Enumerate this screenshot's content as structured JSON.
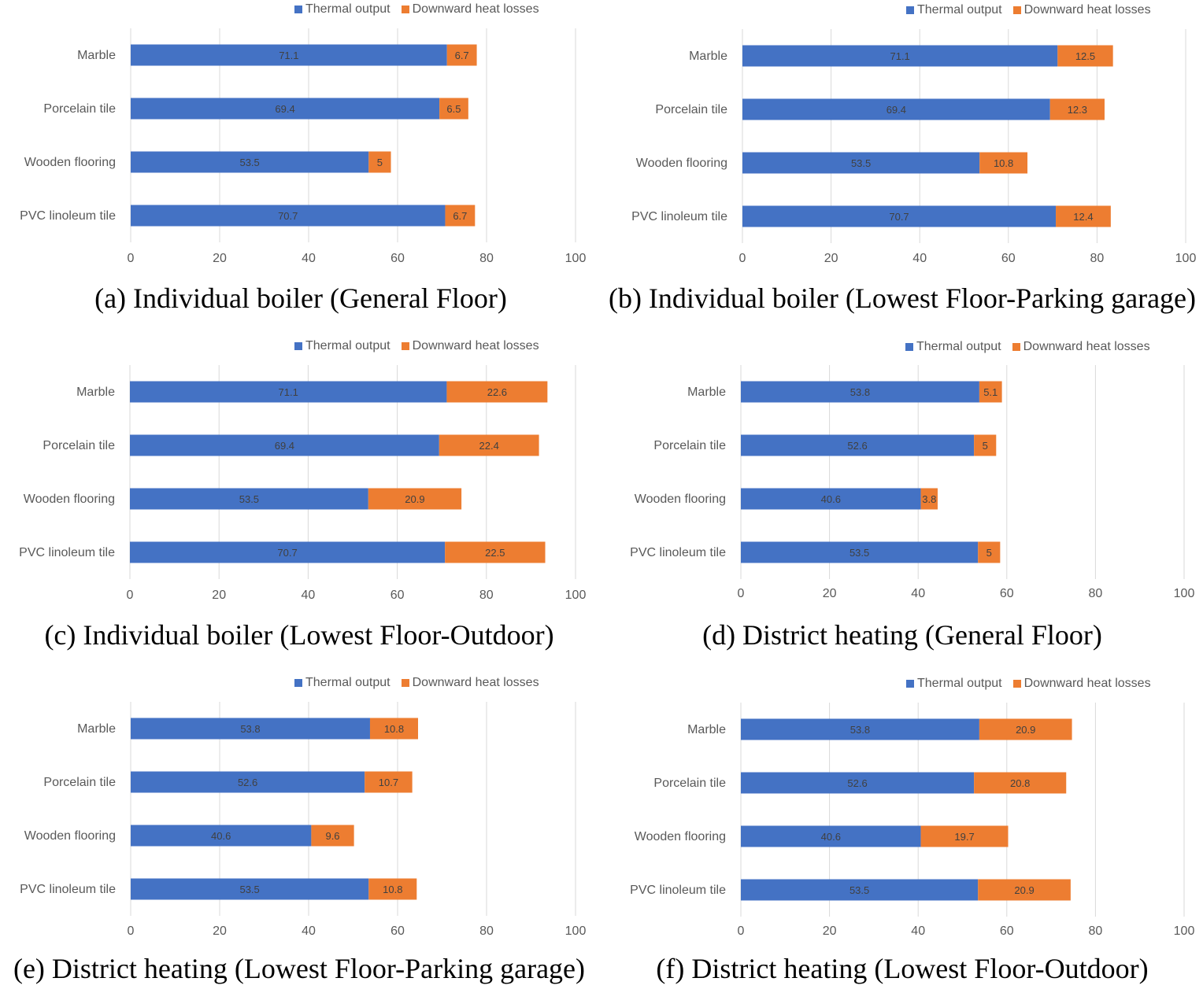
{
  "colors": {
    "thermal": "#4472C4",
    "losses": "#ED7D31",
    "grid": "#D9D9D9"
  },
  "chart_data": [
    {
      "type": "bar",
      "orientation": "horizontal",
      "stacked": true,
      "title": "(a) Individual boiler (General Floor)",
      "categories": [
        "Marble",
        "Porcelain tile",
        "Wooden flooring",
        "PVC linoleum tile"
      ],
      "series": [
        {
          "name": "Thermal output",
          "values": [
            71.1,
            69.4,
            53.5,
            70.7
          ]
        },
        {
          "name": "Downward heat losses",
          "values": [
            6.7,
            6.5,
            5,
            6.7
          ]
        }
      ],
      "xlim": [
        0,
        100
      ],
      "xticks": [
        "0",
        "20",
        "40",
        "60",
        "80",
        "100"
      ],
      "grid": true,
      "legend": "top"
    },
    {
      "type": "bar",
      "orientation": "horizontal",
      "stacked": true,
      "title": "(b) Individual boiler (Lowest Floor-Parking garage)",
      "categories": [
        "Marble",
        "Porcelain tile",
        "Wooden flooring",
        "PVC linoleum tile"
      ],
      "series": [
        {
          "name": "Thermal output",
          "values": [
            71.1,
            69.4,
            53.5,
            70.7
          ]
        },
        {
          "name": "Downward heat losses",
          "values": [
            12.5,
            12.3,
            10.8,
            12.4
          ]
        }
      ],
      "xlim": [
        0,
        100
      ],
      "xticks": [
        "0",
        "20",
        "40",
        "60",
        "80",
        "100"
      ],
      "grid": true,
      "legend": "top"
    },
    {
      "type": "bar",
      "orientation": "horizontal",
      "stacked": true,
      "title": "(c) Individual boiler (Lowest Floor-Outdoor)",
      "categories": [
        "Marble",
        "Porcelain tile",
        "Wooden flooring",
        "PVC linoleum tile"
      ],
      "series": [
        {
          "name": "Thermal output",
          "values": [
            71.1,
            69.4,
            53.5,
            70.7
          ]
        },
        {
          "name": "Downward heat losses",
          "values": [
            22.6,
            22.4,
            20.9,
            22.5
          ]
        }
      ],
      "xlim": [
        0,
        100
      ],
      "xticks": [
        "0",
        "20",
        "40",
        "60",
        "80",
        "100"
      ],
      "grid": true,
      "legend": "top"
    },
    {
      "type": "bar",
      "orientation": "horizontal",
      "stacked": true,
      "title": "(d) District heating (General Floor)",
      "categories": [
        "Marble",
        "Porcelain tile",
        "Wooden flooring",
        "PVC linoleum tile"
      ],
      "series": [
        {
          "name": "Thermal output",
          "values": [
            53.8,
            52.6,
            40.6,
            53.5
          ]
        },
        {
          "name": "Downward heat losses",
          "values": [
            5.1,
            5,
            3.8,
            5
          ]
        }
      ],
      "xlim": [
        0,
        100
      ],
      "xticks": [
        "0",
        "20",
        "40",
        "60",
        "80",
        "100"
      ],
      "grid": true,
      "legend": "top"
    },
    {
      "type": "bar",
      "orientation": "horizontal",
      "stacked": true,
      "title": "(e) District heating (Lowest Floor-Parking garage)",
      "categories": [
        "Marble",
        "Porcelain tile",
        "Wooden flooring",
        "PVC linoleum tile"
      ],
      "series": [
        {
          "name": "Thermal output",
          "values": [
            53.8,
            52.6,
            40.6,
            53.5
          ]
        },
        {
          "name": "Downward heat losses",
          "values": [
            10.8,
            10.7,
            9.6,
            10.8
          ]
        }
      ],
      "xlim": [
        0,
        100
      ],
      "xticks": [
        "0",
        "20",
        "40",
        "60",
        "80",
        "100"
      ],
      "grid": true,
      "legend": "top"
    },
    {
      "type": "bar",
      "orientation": "horizontal",
      "stacked": true,
      "title": "(f) District heating (Lowest Floor-Outdoor)",
      "categories": [
        "Marble",
        "Porcelain tile",
        "Wooden flooring",
        "PVC linoleum tile"
      ],
      "series": [
        {
          "name": "Thermal output",
          "values": [
            53.8,
            52.6,
            40.6,
            53.5
          ]
        },
        {
          "name": "Downward heat losses",
          "values": [
            20.9,
            20.8,
            19.7,
            20.9
          ]
        }
      ],
      "xlim": [
        0,
        100
      ],
      "xticks": [
        "0",
        "20",
        "40",
        "60",
        "80",
        "100"
      ],
      "grid": true,
      "legend": "top"
    }
  ]
}
